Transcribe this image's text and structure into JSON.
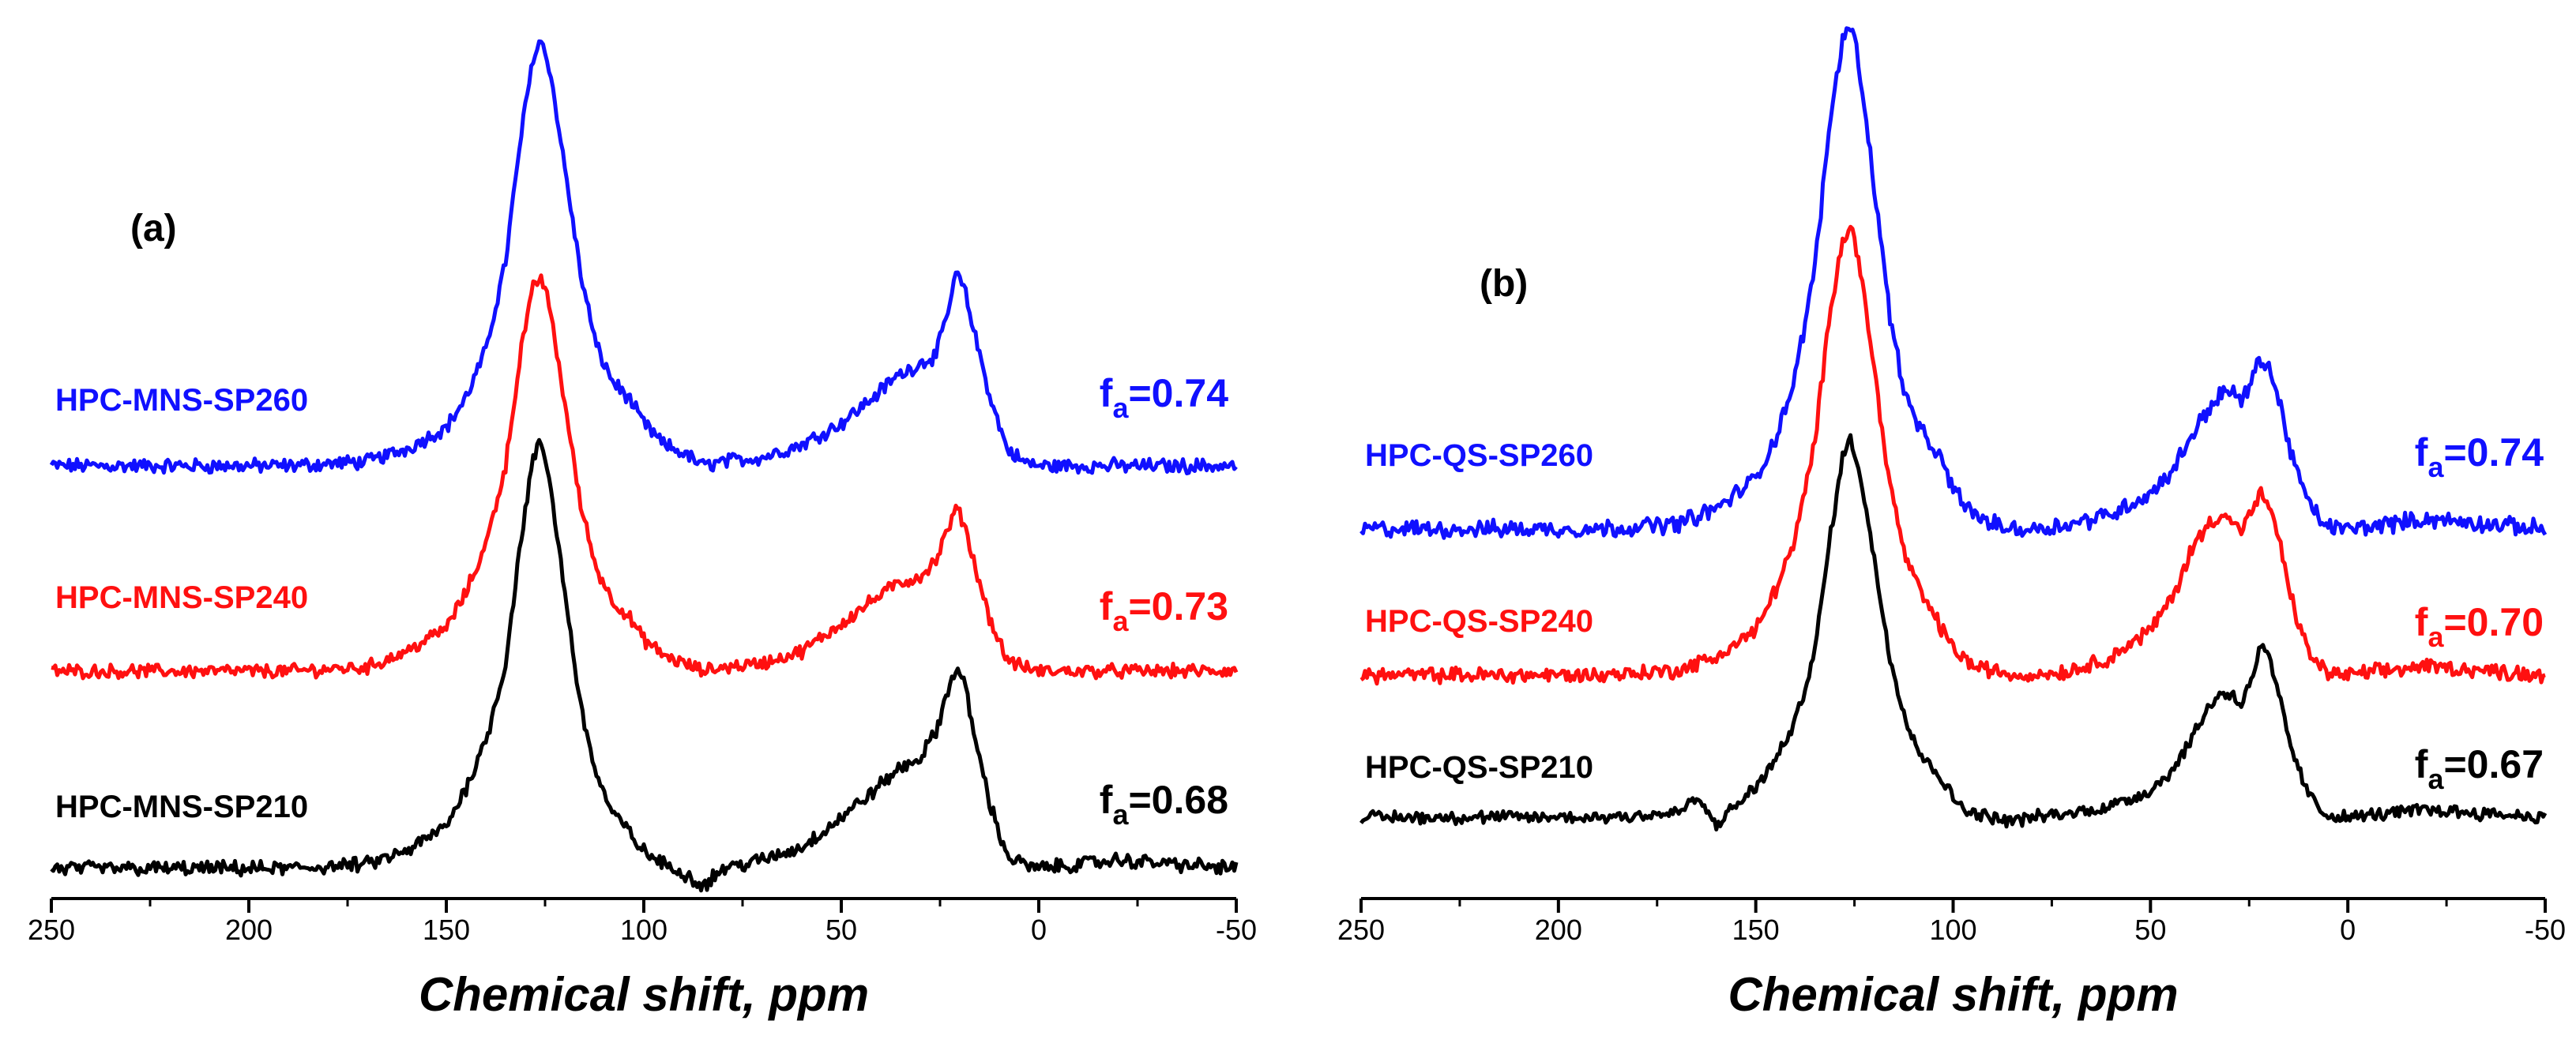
{
  "chart_data": [
    {
      "type": "line",
      "panel": "(a)",
      "xlabel": "Chemical shift, ppm",
      "ylabel": "",
      "xlim": [
        250,
        -50
      ],
      "x_ticks": [
        "250",
        "200",
        "150",
        "100",
        "50",
        "0",
        "-50"
      ],
      "grid": false,
      "series": [
        {
          "name": "HPC-MNS-SP260",
          "color": "#1010ff",
          "fa_label": "f",
          "fa_sub": "a",
          "fa_value": "=0.74",
          "x": [
            250,
            220,
            190,
            170,
            160,
            150,
            145,
            140,
            135,
            131,
            128,
            126,
            124,
            120,
            116,
            112,
            108,
            104,
            100,
            95,
            90,
            85,
            80,
            70,
            60,
            50,
            42,
            36,
            30,
            26,
            23,
            21,
            19,
            16,
            12,
            8,
            4,
            0,
            -20,
            -50
          ],
          "y": [
            0,
            0,
            0,
            0.01,
            0.04,
            0.09,
            0.16,
            0.27,
            0.48,
            0.78,
            0.96,
            1.0,
            0.94,
            0.7,
            0.45,
            0.28,
            0.2,
            0.16,
            0.1,
            0.05,
            0.03,
            0.0,
            0.01,
            0.02,
            0.05,
            0.1,
            0.16,
            0.21,
            0.24,
            0.26,
            0.36,
            0.45,
            0.42,
            0.3,
            0.15,
            0.04,
            0.01,
            0.0,
            0.0,
            0.0
          ]
        },
        {
          "name": "HPC-MNS-SP240",
          "color": "#ff1010",
          "fa_label": "f",
          "fa_sub": "a",
          "fa_value": "=0.73",
          "x": [
            250,
            220,
            190,
            170,
            160,
            150,
            145,
            140,
            135,
            131,
            128,
            126,
            124,
            120,
            116,
            112,
            108,
            104,
            100,
            95,
            90,
            85,
            80,
            70,
            60,
            50,
            42,
            36,
            30,
            26,
            23,
            21,
            19,
            16,
            12,
            8,
            4,
            0,
            -20,
            -50
          ],
          "y": [
            0,
            0,
            0,
            0.01,
            0.05,
            0.11,
            0.2,
            0.32,
            0.52,
            0.82,
            0.97,
            1.0,
            0.93,
            0.68,
            0.42,
            0.26,
            0.18,
            0.14,
            0.08,
            0.04,
            0.02,
            0.0,
            0.01,
            0.02,
            0.05,
            0.12,
            0.18,
            0.22,
            0.24,
            0.28,
            0.36,
            0.41,
            0.38,
            0.26,
            0.12,
            0.03,
            0.01,
            0.0,
            0.0,
            0.0
          ]
        },
        {
          "name": "HPC-MNS-SP210",
          "color": "#000000",
          "fa_label": "f",
          "fa_sub": "a",
          "fa_value": "=0.68",
          "x": [
            250,
            220,
            190,
            170,
            160,
            150,
            145,
            140,
            135,
            131,
            128,
            126,
            124,
            120,
            116,
            112,
            108,
            104,
            100,
            95,
            90,
            85,
            80,
            70,
            60,
            50,
            42,
            36,
            30,
            26,
            23,
            21,
            19,
            16,
            12,
            8,
            4,
            0,
            -20,
            -50
          ],
          "y": [
            0,
            0,
            0,
            0.01,
            0.04,
            0.1,
            0.19,
            0.3,
            0.48,
            0.78,
            0.96,
            1.0,
            0.92,
            0.65,
            0.38,
            0.22,
            0.13,
            0.09,
            0.04,
            0.01,
            -0.01,
            -0.04,
            0.0,
            0.02,
            0.05,
            0.12,
            0.18,
            0.23,
            0.26,
            0.32,
            0.42,
            0.47,
            0.44,
            0.3,
            0.14,
            0.03,
            0.01,
            0.0,
            0.02,
            0.0
          ]
        }
      ]
    },
    {
      "type": "line",
      "panel": "(b)",
      "xlabel": "Chemical shift, ppm",
      "ylabel": "",
      "xlim": [
        250,
        -50
      ],
      "x_ticks": [
        "250",
        "200",
        "150",
        "100",
        "50",
        "0",
        "-50"
      ],
      "grid": false,
      "series": [
        {
          "name": "HPC-QS-SP260",
          "color": "#1010ff",
          "fa_label": "f",
          "fa_sub": "a",
          "fa_value": "=0.74",
          "x": [
            250,
            220,
            190,
            170,
            160,
            150,
            145,
            140,
            135,
            131,
            128,
            126,
            124,
            120,
            116,
            112,
            108,
            104,
            100,
            95,
            90,
            85,
            80,
            70,
            60,
            50,
            44,
            40,
            36,
            32,
            29,
            27,
            24,
            22,
            20,
            17,
            14,
            10,
            6,
            2,
            0,
            -20,
            -50
          ],
          "y": [
            0,
            0,
            0,
            0.01,
            0.04,
            0.1,
            0.18,
            0.3,
            0.52,
            0.82,
            0.97,
            1.0,
            0.93,
            0.68,
            0.42,
            0.26,
            0.19,
            0.15,
            0.08,
            0.03,
            0.01,
            0.0,
            0.0,
            0.01,
            0.03,
            0.07,
            0.12,
            0.18,
            0.23,
            0.27,
            0.27,
            0.25,
            0.3,
            0.34,
            0.32,
            0.24,
            0.14,
            0.05,
            0.01,
            0.0,
            0.0,
            0.02,
            0.0
          ]
        },
        {
          "name": "HPC-QS-SP240",
          "color": "#ff1010",
          "fa_label": "f",
          "fa_sub": "a",
          "fa_value": "=0.70",
          "x": [
            250,
            220,
            190,
            170,
            160,
            150,
            145,
            140,
            135,
            131,
            128,
            126,
            124,
            120,
            116,
            112,
            108,
            104,
            100,
            95,
            90,
            85,
            80,
            70,
            60,
            50,
            44,
            40,
            36,
            32,
            29,
            27,
            24,
            22,
            20,
            17,
            14,
            10,
            6,
            2,
            0,
            -20,
            -50
          ],
          "y": [
            0,
            0,
            0,
            0.01,
            0.04,
            0.1,
            0.19,
            0.3,
            0.52,
            0.82,
            0.97,
            1.0,
            0.93,
            0.68,
            0.42,
            0.26,
            0.18,
            0.12,
            0.06,
            0.02,
            0.01,
            0.0,
            0.0,
            0.01,
            0.04,
            0.1,
            0.18,
            0.27,
            0.33,
            0.36,
            0.34,
            0.32,
            0.37,
            0.4,
            0.38,
            0.28,
            0.16,
            0.05,
            0.01,
            0.0,
            0.0,
            0.02,
            0.0
          ]
        },
        {
          "name": "HPC-QS-SP210",
          "color": "#000000",
          "fa_label": "f",
          "fa_sub": "a",
          "fa_value": "=0.67",
          "x": [
            250,
            220,
            190,
            170,
            165,
            160,
            150,
            145,
            140,
            135,
            131,
            128,
            126,
            124,
            120,
            116,
            112,
            108,
            104,
            100,
            95,
            90,
            85,
            80,
            70,
            60,
            50,
            44,
            40,
            36,
            32,
            29,
            27,
            24,
            22,
            20,
            17,
            14,
            10,
            6,
            2,
            0,
            -20,
            -50
          ],
          "y": [
            0,
            0,
            0,
            0.01,
            0.05,
            -0.02,
            0.08,
            0.15,
            0.25,
            0.44,
            0.75,
            0.95,
            1.0,
            0.93,
            0.68,
            0.42,
            0.26,
            0.16,
            0.12,
            0.05,
            0.01,
            0.0,
            -0.01,
            0.0,
            0.01,
            0.03,
            0.07,
            0.13,
            0.2,
            0.28,
            0.33,
            0.32,
            0.3,
            0.38,
            0.45,
            0.42,
            0.3,
            0.17,
            0.06,
            0.01,
            0.0,
            0.0,
            0.02,
            0.0
          ]
        }
      ]
    }
  ]
}
